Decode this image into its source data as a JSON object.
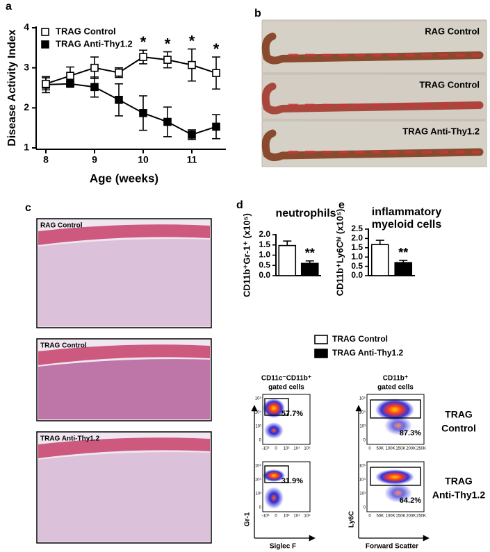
{
  "chart_data": [
    {
      "type": "line",
      "panel": "a",
      "xlabel": "Age (weeks)",
      "ylabel": "Disease Activity Index",
      "x": [
        8,
        8.5,
        9,
        9.5,
        10,
        10.5,
        11,
        11.5
      ],
      "xlim": [
        7.8,
        11.7
      ],
      "xticks": [
        8,
        9,
        10,
        11
      ],
      "ylim": [
        1,
        4
      ],
      "yticks": [
        1,
        2,
        3,
        4
      ],
      "series": [
        {
          "name": "TRAG Control",
          "color": "#ffffff",
          "values": [
            2.6,
            2.8,
            3.0,
            2.88,
            3.27,
            3.2,
            3.07,
            2.87
          ],
          "errors": [
            0.15,
            0.22,
            0.27,
            0.12,
            0.17,
            0.2,
            0.4,
            0.4
          ]
        },
        {
          "name": "TRAG Anti-Thy1.2",
          "color": "#000000",
          "values": [
            2.58,
            2.6,
            2.52,
            2.2,
            1.87,
            1.65,
            1.33,
            1.53
          ],
          "errors": [
            0.2,
            0.05,
            0.25,
            0.4,
            0.43,
            0.37,
            0.12,
            0.3
          ]
        }
      ],
      "annotations": [
        {
          "x": 10,
          "text": "*"
        },
        {
          "x": 10.5,
          "text": "*"
        },
        {
          "x": 11,
          "text": "*"
        },
        {
          "x": 11.5,
          "text": "*"
        }
      ]
    },
    {
      "type": "bar",
      "panel": "d",
      "title": [
        "neutrophils"
      ],
      "ylabel": "CD11b⁺Gr-1⁺ (x10⁵)",
      "ylim": [
        0,
        2
      ],
      "yticks": [
        {
          "value": 0,
          "label": "0.0"
        },
        {
          "value": 0.5,
          "label": "0.5"
        },
        {
          "value": 1,
          "label": "1.0"
        },
        {
          "value": 1.5,
          "label": "1.5"
        },
        {
          "value": 2,
          "label": "2.0"
        }
      ],
      "series": [
        {
          "name": "TRAG Control",
          "color": "#ffffff",
          "values": [
            1.47
          ],
          "errors": [
            0.22
          ]
        },
        {
          "name": "TRAG Anti-Thy1.2",
          "color": "#000000",
          "values": [
            0.6
          ],
          "errors": [
            0.12
          ],
          "annotation": "**"
        }
      ]
    },
    {
      "type": "bar",
      "panel": "e",
      "title": [
        "inflammatory",
        "myeloid cells"
      ],
      "ylabel": "CD11b⁺Ly6Cʰⁱ (x10⁵)",
      "ylim": [
        0,
        2.5
      ],
      "yticks": [
        {
          "value": 0,
          "label": "0.0"
        },
        {
          "value": 0.5,
          "label": "0.5"
        },
        {
          "value": 1,
          "label": "1.0"
        },
        {
          "value": 1.5,
          "label": "1.5"
        },
        {
          "value": 2,
          "label": "2.0"
        },
        {
          "value": 2.5,
          "label": "2.5"
        }
      ],
      "series": [
        {
          "name": "TRAG Control",
          "color": "#ffffff",
          "values": [
            1.67
          ],
          "errors": [
            0.23
          ]
        },
        {
          "name": "TRAG Anti-Thy1.2",
          "color": "#000000",
          "values": [
            0.7
          ],
          "errors": [
            0.12
          ],
          "annotation": "**"
        }
      ]
    }
  ],
  "panel_b": {
    "label": "b",
    "images": [
      "RAG Control",
      "TRAG Control",
      "TRAG Anti-Thy1.2"
    ]
  },
  "panel_c": {
    "label": "c",
    "images": [
      "RAG Control",
      "TRAG Control",
      "TRAG Anti-Thy1.2"
    ]
  },
  "flow": {
    "y_ticks": [
      "10⁵",
      "10⁴",
      "10³",
      "0"
    ],
    "columns": [
      {
        "header": [
          "CD11c⁻CD11b⁺",
          "gated cells"
        ],
        "y_axis": "Gr-1",
        "x_axis": "Siglec F",
        "x_ticks": [
          "-10³",
          "0",
          "10³",
          "10⁴",
          "10⁵"
        ],
        "percentages": [
          "57.7%",
          "31.9%"
        ]
      },
      {
        "header": [
          "CD11b⁺",
          "gated cells"
        ],
        "y_axis": "Ly6C",
        "x_axis": "Forward Scatter",
        "x_ticks": [
          "0",
          "50K",
          "100K",
          "150K",
          "200K",
          "250K"
        ],
        "percentages": [
          "87.3%",
          "64.2%"
        ]
      }
    ],
    "rows": [
      [
        "TRAG",
        "Control"
      ],
      [
        "TRAG",
        "Anti-Thy1.2"
      ]
    ]
  }
}
